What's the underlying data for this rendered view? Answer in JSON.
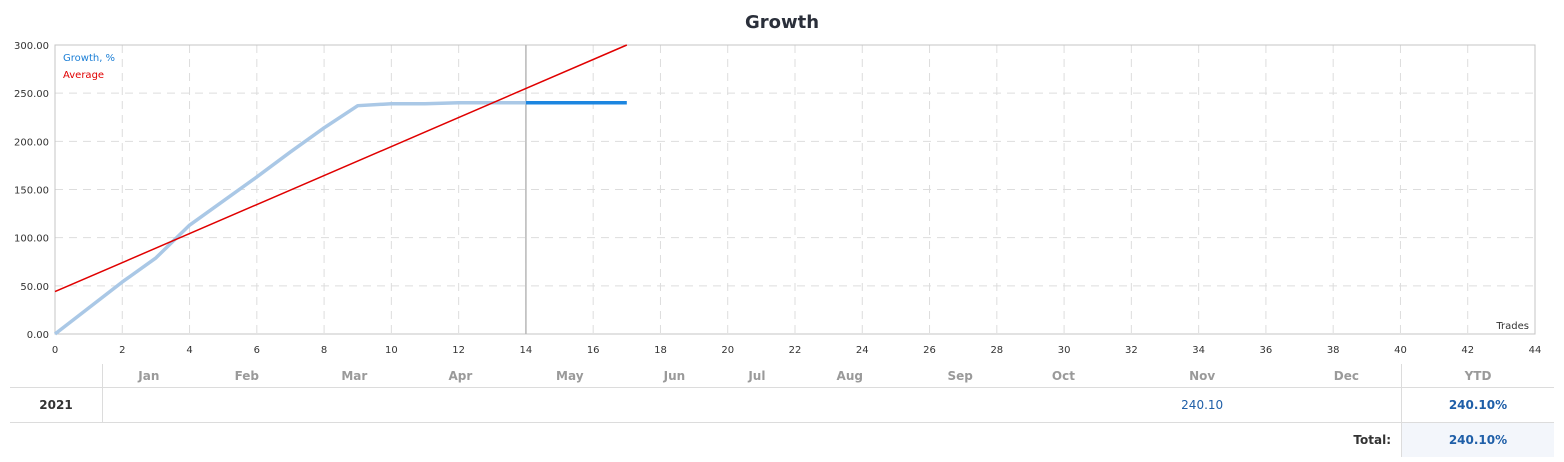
{
  "title": "Growth",
  "legend": {
    "growth": "Growth, %",
    "average": "Average"
  },
  "xlabel": "Trades",
  "colors": {
    "growth_history": "#aac8e6",
    "growth_current": "#1c86e0",
    "average": "#e00000",
    "grid": "#dddddd",
    "axis": "#c4c4c4"
  },
  "chart_data": {
    "type": "line",
    "title": "Growth",
    "xlabel": "Trades",
    "ylabel": "",
    "xlim": [
      0,
      44
    ],
    "ylim": [
      0,
      300
    ],
    "grid": true,
    "legend_position": "top-left",
    "x_ticks": [
      "0",
      "2",
      "4",
      "6",
      "8",
      "10",
      "12",
      "14",
      "16",
      "18",
      "20",
      "22",
      "24",
      "26",
      "28",
      "30",
      "32",
      "34",
      "36",
      "38",
      "40",
      "42",
      "44"
    ],
    "y_ticks": [
      "0.00",
      "50.00",
      "100.00",
      "150.00",
      "200.00",
      "250.00",
      "300.00"
    ],
    "vertical_marker_x": 14,
    "series": [
      {
        "name": "Growth, %",
        "x": [
          0,
          1,
          2,
          3,
          4,
          5,
          6,
          7,
          8,
          9,
          10,
          11,
          12,
          13,
          14,
          15,
          16,
          17
        ],
        "values": [
          0,
          27,
          54,
          79,
          113,
          138,
          163,
          189,
          214,
          237,
          239,
          239,
          240,
          240,
          240.1,
          240.1,
          240.1,
          240.1
        ]
      },
      {
        "name": "Average",
        "x": [
          0,
          17
        ],
        "values": [
          44,
          300
        ]
      }
    ]
  },
  "table": {
    "headers": [
      "Jan",
      "Feb",
      "Mar",
      "Apr",
      "May",
      "Jun",
      "Jul",
      "Aug",
      "Sep",
      "Oct",
      "Nov",
      "Dec",
      "YTD"
    ],
    "rows": [
      {
        "year": "2021",
        "values": [
          "",
          "",
          "",
          "",
          "",
          "",
          "",
          "",
          "",
          "",
          "240.10",
          ""
        ],
        "ytd": "240.10%"
      }
    ],
    "total_label": "Total:",
    "total_value": "240.10%"
  }
}
